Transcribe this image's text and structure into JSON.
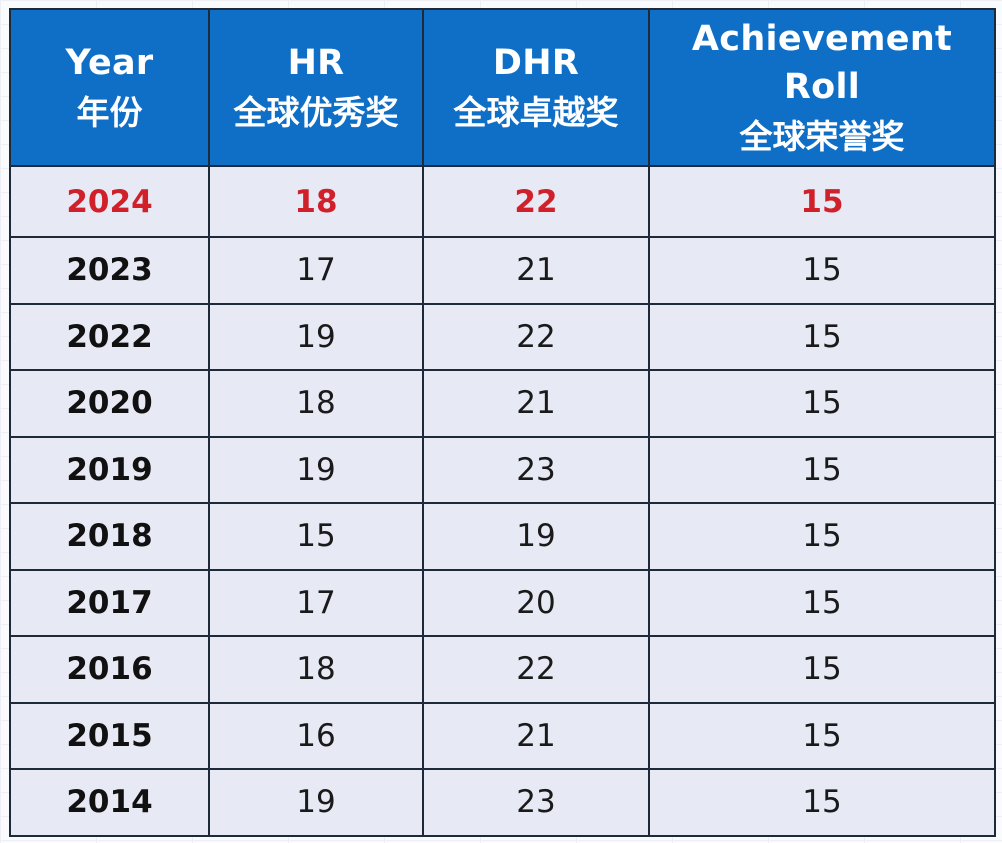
{
  "table": {
    "headers": [
      {
        "en": "Year",
        "zh": "年份"
      },
      {
        "en": "HR",
        "zh": "全球优秀奖"
      },
      {
        "en": "DHR",
        "zh": "全球卓越奖"
      },
      {
        "en": "Achievement Roll",
        "zh": "全球荣誉奖"
      }
    ],
    "rows": [
      {
        "year": "2024",
        "hr": "18",
        "dhr": "22",
        "achievement": "15",
        "highlight": true
      },
      {
        "year": "2023",
        "hr": "17",
        "dhr": "21",
        "achievement": "15"
      },
      {
        "year": "2022",
        "hr": "19",
        "dhr": "22",
        "achievement": "15"
      },
      {
        "year": "2020",
        "hr": "18",
        "dhr": "21",
        "achievement": "15"
      },
      {
        "year": "2019",
        "hr": "19",
        "dhr": "23",
        "achievement": "15"
      },
      {
        "year": "2018",
        "hr": "15",
        "dhr": "19",
        "achievement": "15"
      },
      {
        "year": "2017",
        "hr": "17",
        "dhr": "20",
        "achievement": "15"
      },
      {
        "year": "2016",
        "hr": "18",
        "dhr": "22",
        "achievement": "15"
      },
      {
        "year": "2015",
        "hr": "16",
        "dhr": "21",
        "achievement": "15"
      },
      {
        "year": "2014",
        "hr": "19",
        "dhr": "23",
        "achievement": "15"
      }
    ]
  },
  "colors": {
    "header_background": "#0f6fc6",
    "header_text": "#ffffff",
    "row_background": "#e7e9f5",
    "highlight_text": "#d0202a",
    "border": "#1c2a3a"
  }
}
